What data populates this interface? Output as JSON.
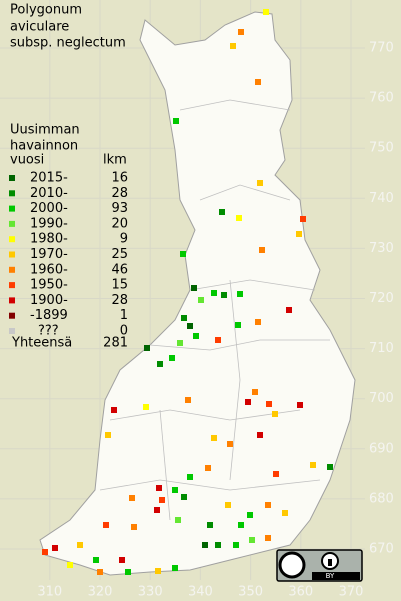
{
  "title": [
    "Polygonum",
    "aviculare",
    "subsp. neglectum"
  ],
  "legend": {
    "heading": [
      "Uusimman",
      "havainnon",
      "vuosi"
    ],
    "count_heading": "lkm",
    "items": [
      {
        "label": "2015-",
        "count": 16,
        "color": "#006400"
      },
      {
        "label": "2010-",
        "count": 28,
        "color": "#008c00"
      },
      {
        "label": "2000-",
        "count": 93,
        "color": "#00c800"
      },
      {
        "label": "1990-",
        "count": 20,
        "color": "#64e632"
      },
      {
        "label": "1980-",
        "count": 9,
        "color": "#ffff00"
      },
      {
        "label": "1970-",
        "count": 25,
        "color": "#ffc800"
      },
      {
        "label": "1960-",
        "count": 46,
        "color": "#ff8000"
      },
      {
        "label": "1950-",
        "count": 15,
        "color": "#ff3c00"
      },
      {
        "label": "1900-",
        "count": 28,
        "color": "#d20000"
      },
      {
        "label": "-1899",
        "count": 1,
        "color": "#820000"
      },
      {
        "label": "???",
        "count": 0,
        "color": "#c8c8c8"
      }
    ],
    "total_label": "Yhteensä",
    "total": 281
  },
  "grid": {
    "y_labels": [
      770,
      760,
      750,
      740,
      730,
      720,
      710,
      700,
      690,
      680,
      670
    ],
    "x_labels": [
      310,
      320,
      330,
      340,
      350,
      360,
      370
    ]
  },
  "license_badge": "BY"
}
